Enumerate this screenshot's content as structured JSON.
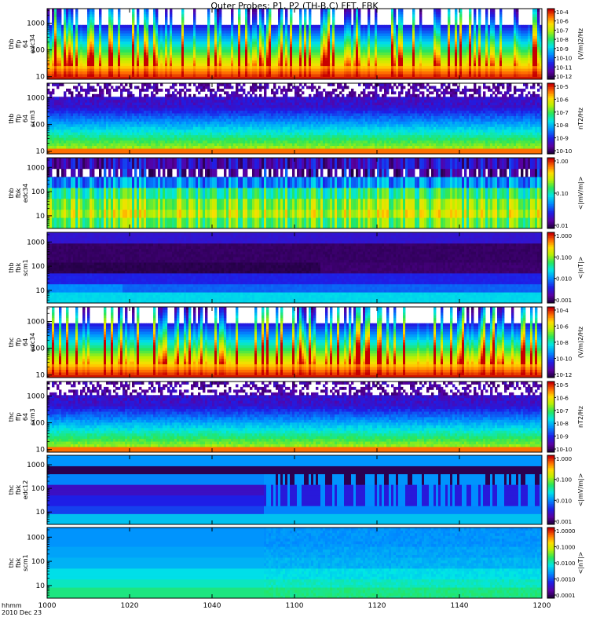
{
  "title": "Outer Probes: P1, P2 (TH-B,C) FFT, FBK",
  "footer": {
    "row1": "hhmm",
    "row2": "2010 Dec 23"
  },
  "colors": {
    "axis": "#000000",
    "background": "#ffffff"
  },
  "chart_data": {
    "type": "heatmap",
    "xaxis": {
      "ticks": [
        {
          "v": 0,
          "label": "1000"
        },
        {
          "v": 20,
          "label": "1020"
        },
        {
          "v": 40,
          "label": "1040"
        },
        {
          "v": 60,
          "label": "1100"
        },
        {
          "v": 80,
          "label": "1120"
        },
        {
          "v": 100,
          "label": "1140"
        },
        {
          "v": 120,
          "label": "1200"
        }
      ],
      "range_minutes_after_1000": [
        0,
        120
      ]
    },
    "panels": [
      {
        "name": "thb-ffp-64-edc34",
        "ylabel_lines": [
          "thb",
          "ffp",
          "64",
          "edc34"
        ],
        "yscale": "log",
        "yticks": [
          "1000",
          "100",
          "10"
        ],
        "ytick_vals": [
          1000,
          100,
          10
        ],
        "yrange": [
          8,
          3500
        ],
        "style": "ffp_e",
        "cbar_ticks": [
          "10-4",
          "10-6",
          "10-7",
          "10-8",
          "10-9",
          "10-10",
          "10-11",
          "10-12"
        ],
        "cbar_label": "(V/m)2/Hz",
        "burst_break": 0
      },
      {
        "name": "thb-ffp-64-scm3",
        "ylabel_lines": [
          "thb",
          "ffp",
          "64",
          "scm3"
        ],
        "yscale": "log",
        "yticks": [
          "1000",
          "100",
          "10"
        ],
        "ytick_vals": [
          1000,
          100,
          10
        ],
        "yrange": [
          8,
          3500
        ],
        "style": "ffp_b",
        "cbar_ticks": [
          "10-5",
          "10-6",
          "10-7",
          "10-8",
          "10-9",
          "10-10"
        ],
        "cbar_label": "nT2/Hz",
        "burst_break": 0
      },
      {
        "name": "thb-fbk-edc34",
        "ylabel_lines": [
          "thb",
          "fbk",
          "edc34"
        ],
        "yscale": "log",
        "yticks": [
          "1000",
          "100",
          "10"
        ],
        "ytick_vals": [
          1000,
          100,
          10
        ],
        "yrange": [
          3,
          2500
        ],
        "style": "fbk_e_b",
        "cbar_ticks": [
          "1.00",
          "0.10",
          "0.01"
        ],
        "cbar_label": "<|mV/m|>",
        "burst_break": 0
      },
      {
        "name": "thb-fbk-scm1",
        "ylabel_lines": [
          "thb",
          "fbk",
          "scm1"
        ],
        "yscale": "log",
        "yticks": [
          "1000",
          "100",
          "10"
        ],
        "ytick_vals": [
          1000,
          100,
          10
        ],
        "yrange": [
          3,
          2500
        ],
        "style": "fbk_b_b",
        "cbar_ticks": [
          "1.000",
          "0.100",
          "0.010",
          "0.001"
        ],
        "cbar_label": "<|nT|>",
        "burst_break": 0
      },
      {
        "name": "thc-ffp-64-edc34",
        "ylabel_lines": [
          "thc",
          "ffp",
          "64",
          "edc34"
        ],
        "yscale": "log",
        "yticks": [
          "1000",
          "100",
          "10"
        ],
        "ytick_vals": [
          1000,
          100,
          10
        ],
        "yrange": [
          8,
          3500
        ],
        "style": "ffp_e",
        "cbar_ticks": [
          "10-4",
          "10-6",
          "10-8",
          "10-10",
          "10-12"
        ],
        "cbar_label": "(V/m)2/Hz",
        "burst_break": 0
      },
      {
        "name": "thc-ffp-64-scm3",
        "ylabel_lines": [
          "thc",
          "ffp",
          "64",
          "scm3"
        ],
        "yscale": "log",
        "yticks": [
          "1000",
          "100",
          "10"
        ],
        "ytick_vals": [
          1000,
          100,
          10
        ],
        "yrange": [
          8,
          3500
        ],
        "style": "ffp_b",
        "cbar_ticks": [
          "10-5",
          "10-6",
          "10-7",
          "10-8",
          "10-9",
          "10-10"
        ],
        "cbar_label": "nT2/Hz",
        "burst_break": 0
      },
      {
        "name": "thc-fbk-edc12",
        "ylabel_lines": [
          "thc",
          "fbk",
          "edc12"
        ],
        "yscale": "log",
        "yticks": [
          "1000",
          "100",
          "10"
        ],
        "ytick_vals": [
          1000,
          100,
          10
        ],
        "yrange": [
          3,
          2500
        ],
        "style": "fbk_e_c",
        "cbar_ticks": [
          "1.000",
          "0.100",
          "0.010",
          "0.001"
        ],
        "cbar_label": "<|mV/m|>",
        "burst_break": 52
      },
      {
        "name": "thc-fbk-scm1",
        "ylabel_lines": [
          "thc",
          "fbk",
          "scm1"
        ],
        "yscale": "log",
        "yticks": [
          "1000",
          "100",
          "10"
        ],
        "ytick_vals": [
          1000,
          100,
          10
        ],
        "yrange": [
          3,
          2500
        ],
        "style": "fbk_b_c",
        "cbar_ticks": [
          "1.0000",
          "0.1000",
          "0.0100",
          "0.0010",
          "0.0001"
        ],
        "cbar_label": "<|nT|>",
        "burst_break": 52
      }
    ]
  }
}
